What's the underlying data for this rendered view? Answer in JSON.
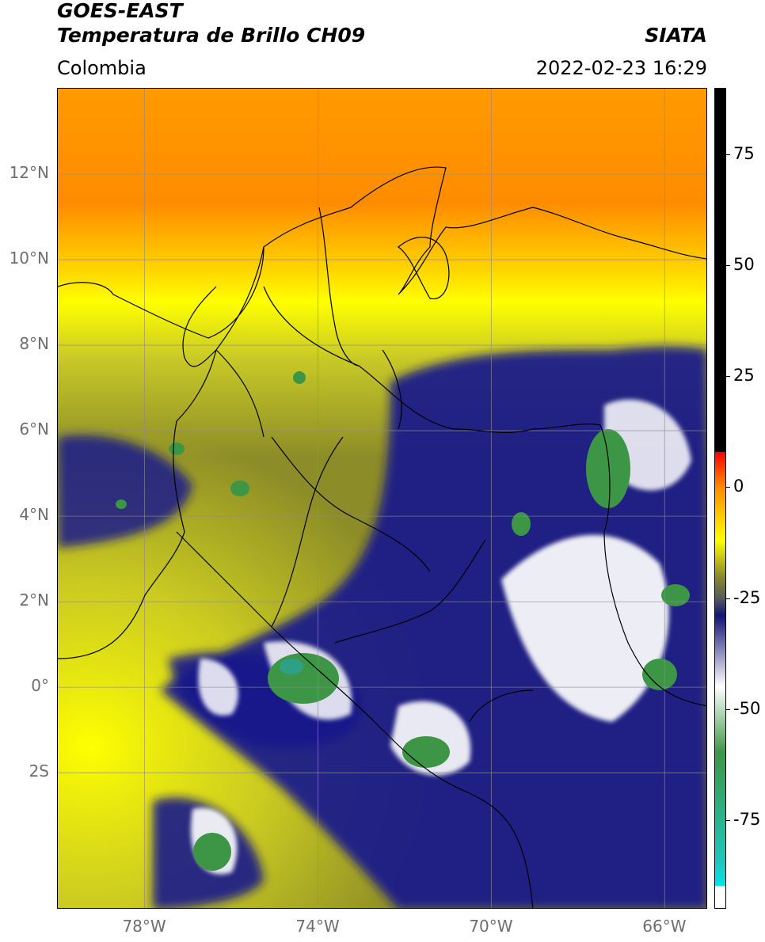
{
  "header": {
    "title_line1": "GOES-EAST",
    "title_line2": "Temperatura de Brillo CH09",
    "region": "Colombia",
    "source": "SIATA",
    "datetime": "2022-02-23 16:29"
  },
  "map": {
    "lon_range": [
      -80,
      -65
    ],
    "lat_range": [
      -5.2,
      14
    ],
    "lon_ticks": [
      {
        "value": -78,
        "label": "78°W"
      },
      {
        "value": -74,
        "label": "74°W"
      },
      {
        "value": -70,
        "label": "70°W"
      },
      {
        "value": -66,
        "label": "66°W"
      }
    ],
    "lat_ticks": [
      {
        "value": 12,
        "label": "12°N"
      },
      {
        "value": 10,
        "label": "10°N"
      },
      {
        "value": 8,
        "label": "8°N"
      },
      {
        "value": 6,
        "label": "6°N"
      },
      {
        "value": 4,
        "label": "4°N"
      },
      {
        "value": 2,
        "label": "2°N"
      },
      {
        "value": 0,
        "label": "0°"
      },
      {
        "value": -2,
        "label": "2S"
      }
    ],
    "gridlines": true,
    "colors": {
      "warm_orange": "#ff8c00",
      "yellow": "#ffff00",
      "olive": "#8c8c28",
      "navy": "#1a1a8c",
      "white": "#ffffff",
      "green": "#3c9646",
      "teal": "#1ec8be",
      "grid": "#8c8c8c",
      "border": "#000000"
    }
  },
  "colorbar": {
    "range": [
      -95,
      90
    ],
    "ticks": [
      {
        "value": 75,
        "label": "75"
      },
      {
        "value": 50,
        "label": "50"
      },
      {
        "value": 25,
        "label": "25"
      },
      {
        "value": 0,
        "label": "0"
      },
      {
        "value": -25,
        "label": "-25"
      },
      {
        "value": -50,
        "label": "-50"
      },
      {
        "value": -75,
        "label": "-75"
      }
    ],
    "stops": [
      {
        "value": 90,
        "color": "#000000"
      },
      {
        "value": 8,
        "color": "#000000"
      },
      {
        "value": 7.9,
        "color": "#ff0000"
      },
      {
        "value": 0,
        "color": "#ff8c00"
      },
      {
        "value": -12,
        "color": "#ffff00"
      },
      {
        "value": -20,
        "color": "#8c8c28"
      },
      {
        "value": -25,
        "color": "#5a5a5a"
      },
      {
        "value": -29,
        "color": "#141478"
      },
      {
        "value": -45,
        "color": "#ffffff"
      },
      {
        "value": -60,
        "color": "#3c9646"
      },
      {
        "value": -85,
        "color": "#1ec8be"
      },
      {
        "value": -90,
        "color": "#00e5ee"
      },
      {
        "value": -90.1,
        "color": "#ffffff"
      },
      {
        "value": -95,
        "color": "#ffffff"
      }
    ]
  }
}
